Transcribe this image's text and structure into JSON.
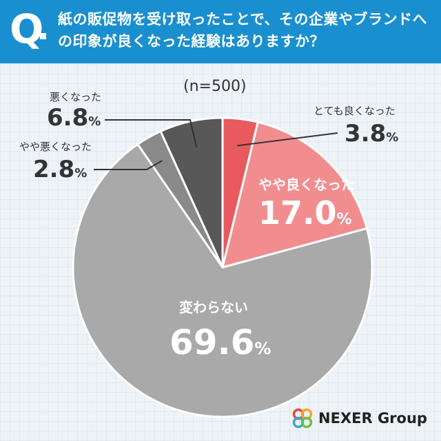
{
  "header": {
    "q_mark": "Q",
    "question": "紙の販促物を受け取ったことで、その企業やブランドへの印象が良くなった経験はありますか？"
  },
  "sample_label": "(n=500)",
  "unit": "%",
  "brand": {
    "name": "NEXER Group"
  },
  "colors": {
    "header": "#1a8fd0",
    "very_good": "#e85a5e",
    "somewhat_good": "#f28d8f",
    "no_change": "#a9a9a9",
    "somewhat_bad": "#8a8a8a",
    "bad": "#585858"
  },
  "chart_data": {
    "type": "pie",
    "title": "紙の販促物を受け取ったことで、その企業やブランドへの印象が良くなった経験はありますか？",
    "n": 500,
    "slices": [
      {
        "label": "とても良くなった",
        "value": 3.8,
        "value_text": "3.8",
        "color": "#e85a5e"
      },
      {
        "label": "やや良くなった",
        "value": 17.0,
        "value_text": "17.0",
        "color": "#f28d8f"
      },
      {
        "label": "変わらない",
        "value": 69.6,
        "value_text": "69.6",
        "color": "#a9a9a9"
      },
      {
        "label": "やや悪くなった",
        "value": 2.8,
        "value_text": "2.8",
        "color": "#8a8a8a"
      },
      {
        "label": "悪くなった",
        "value": 6.8,
        "value_text": "6.8",
        "color": "#585858"
      }
    ]
  }
}
